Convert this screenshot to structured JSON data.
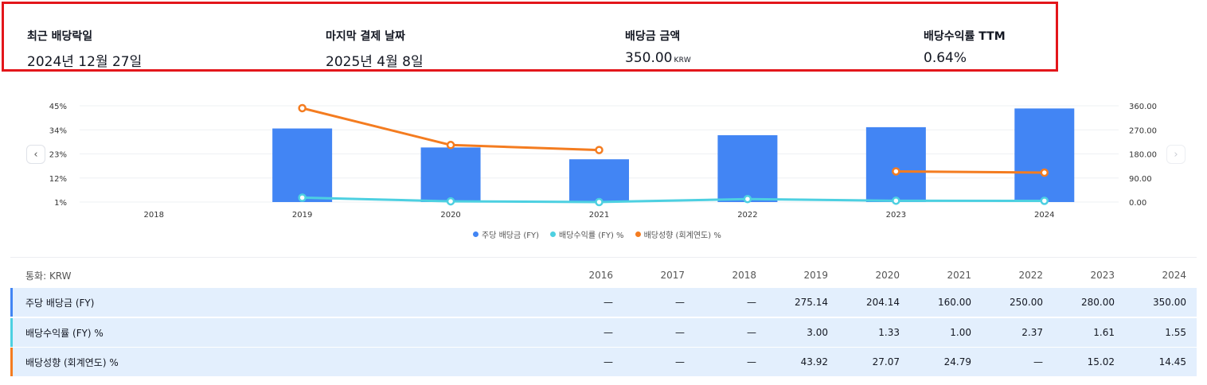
{
  "summary": {
    "ex_date_label": "최근 배당락일",
    "ex_date_value": "2024년 12월 27일",
    "pay_date_label": "마지막 결제 날짜",
    "pay_date_value": "2025년 4월 8일",
    "amount_label": "배당금 금액",
    "amount_value": "350.00",
    "amount_unit": "KRW",
    "yield_label": "배당수익률 TTM",
    "yield_value": "0.64%"
  },
  "chart_data": {
    "type": "bar",
    "categories": [
      "2018",
      "2019",
      "2020",
      "2021",
      "2022",
      "2023",
      "2024"
    ],
    "left_axis": {
      "ticks": [
        "45%",
        "34%",
        "23%",
        "12%",
        "1%"
      ],
      "range": [
        1,
        45
      ]
    },
    "right_axis": {
      "ticks": [
        "360.00",
        "270.00",
        "180.00",
        "90.00",
        "0.00"
      ],
      "range": [
        0,
        360
      ]
    },
    "series": [
      {
        "name": "주당 배당금 (FY)",
        "type": "bar",
        "axis": "right",
        "color": "#4285f4",
        "values": [
          null,
          275.14,
          204.14,
          160.0,
          250.0,
          280.0,
          350.0
        ]
      },
      {
        "name": "배당수익률 (FY) %",
        "type": "line",
        "axis": "left",
        "color": "#4dd0e1",
        "values": [
          null,
          3.0,
          1.33,
          1.0,
          2.37,
          1.61,
          1.55
        ]
      },
      {
        "name": "배당성향 (회계연도) %",
        "type": "line",
        "axis": "left",
        "color": "#f47c20",
        "values": [
          null,
          43.92,
          27.07,
          24.79,
          null,
          15.02,
          14.45
        ]
      }
    ],
    "grid": true
  },
  "legend": [
    {
      "label": "주당 배당금 (FY)",
      "color": "#4285f4"
    },
    {
      "label": "배당수익률 (FY) %",
      "color": "#4dd0e1"
    },
    {
      "label": "배당성향 (회계연도) %",
      "color": "#f47c20"
    }
  ],
  "table": {
    "currency_label": "통화: KRW",
    "years": [
      "2016",
      "2017",
      "2018",
      "2019",
      "2020",
      "2021",
      "2022",
      "2023",
      "2024"
    ],
    "rows": [
      {
        "label": "주당 배당금 (FY)",
        "color": "#4285f4",
        "values": [
          "—",
          "—",
          "—",
          "275.14",
          "204.14",
          "160.00",
          "250.00",
          "280.00",
          "350.00"
        ]
      },
      {
        "label": "배당수익률 (FY) %",
        "color": "#4dd0e1",
        "values": [
          "—",
          "—",
          "—",
          "3.00",
          "1.33",
          "1.00",
          "2.37",
          "1.61",
          "1.55"
        ]
      },
      {
        "label": "배당성향 (회계연도) %",
        "color": "#f47c20",
        "values": [
          "—",
          "—",
          "—",
          "43.92",
          "27.07",
          "24.79",
          "—",
          "15.02",
          "14.45"
        ]
      }
    ]
  }
}
